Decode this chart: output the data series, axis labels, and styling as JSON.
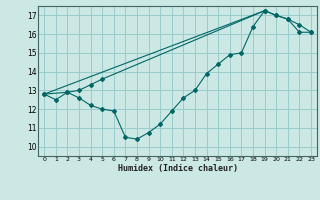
{
  "xlabel": "Humidex (Indice chaleur)",
  "bg_color": "#cce8e4",
  "grid_color": "#99cccc",
  "line_color": "#006666",
  "xlim": [
    -0.5,
    23.5
  ],
  "ylim": [
    9.5,
    17.5
  ],
  "xticks": [
    0,
    1,
    2,
    3,
    4,
    5,
    6,
    7,
    8,
    9,
    10,
    11,
    12,
    13,
    14,
    15,
    16,
    17,
    18,
    19,
    20,
    21,
    22,
    23
  ],
  "yticks": [
    10,
    11,
    12,
    13,
    14,
    15,
    16,
    17
  ],
  "line1_x": [
    0,
    1,
    2,
    3,
    4,
    5,
    6,
    7,
    8,
    9,
    10,
    11,
    12,
    13,
    14,
    15,
    16,
    17,
    18,
    19,
    20,
    21,
    22,
    23
  ],
  "line1_y": [
    12.8,
    12.5,
    12.9,
    12.6,
    12.2,
    12.0,
    11.9,
    10.5,
    10.4,
    10.75,
    11.2,
    11.9,
    12.6,
    13.0,
    13.9,
    14.4,
    14.9,
    15.0,
    16.4,
    17.25,
    17.0,
    16.8,
    16.1,
    16.1
  ],
  "line2_x": [
    0,
    2,
    3,
    4,
    5,
    19,
    20,
    21,
    22,
    23
  ],
  "line2_y": [
    12.8,
    12.9,
    13.0,
    13.3,
    13.6,
    17.25,
    17.0,
    16.8,
    16.5,
    16.1
  ],
  "line3_x": [
    0,
    19
  ],
  "line3_y": [
    12.8,
    17.25
  ]
}
